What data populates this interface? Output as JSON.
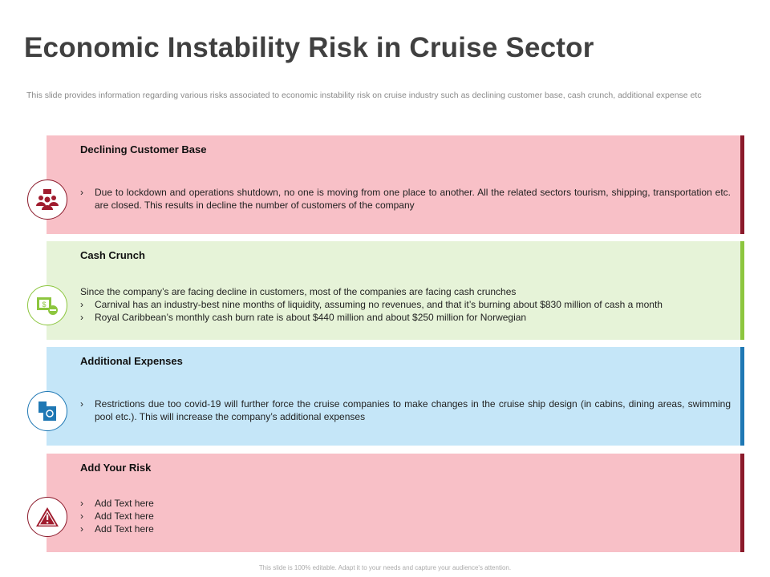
{
  "title": "Economic Instability Risk in Cruise Sector",
  "subtitle": "This slide provides information regarding various risks associated to economic instability risk on cruise industry such as declining customer base, cash crunch, additional expense etc",
  "panels": [
    {
      "heading": "Declining Customer Base",
      "icon": "customers-basket-icon",
      "bg": "#f8c0c7",
      "accent": "#8b1a2b",
      "intro": "",
      "bullets": [
        "Due to lockdown and operations shutdown, no one is moving from one place to another. All the related sectors tourism, shipping, transportation etc. are closed. This results in decline the number of customers of the company"
      ]
    },
    {
      "heading": "Cash Crunch",
      "icon": "cash-minus-icon",
      "bg": "#e6f3d8",
      "accent": "#8dc63f",
      "intro": "Since the company’s are facing decline in customers, most of the companies are facing cash crunches",
      "bullets": [
        "Carnival has an industry-best nine months of liquidity, assuming no revenues, and that it’s burning about $830 million of cash a month",
        "Royal Caribbean’s monthly cash burn rate is about $440 million and about $250 million for Norwegian"
      ]
    },
    {
      "heading": "Additional Expenses",
      "icon": "calculator-bill-icon",
      "bg": "#c5e6f8",
      "accent": "#1f78b4",
      "intro": "",
      "bullets": [
        "Restrictions due too covid-19 will further force the cruise companies to make changes in the cruise ship design (in cabins, dining areas, swimming pool etc.). This will increase the company’s additional expenses"
      ]
    },
    {
      "heading": "Add Your Risk",
      "icon": "warning-icon",
      "bg": "#f8c0c7",
      "accent": "#8b1a2b",
      "intro": "",
      "bullets": [
        "Add Text here",
        "Add Text here",
        "Add Text here"
      ]
    }
  ],
  "footer": "This slide is 100% editable. Adapt it to your needs and capture your audience's attention."
}
